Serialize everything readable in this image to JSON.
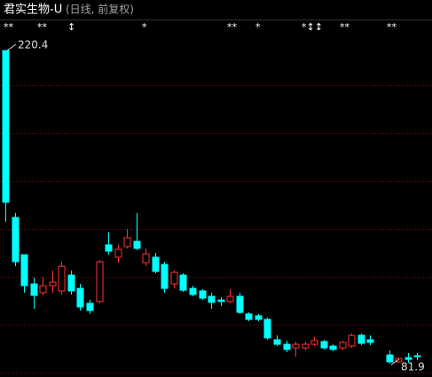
{
  "chart_data": {
    "type": "candlestick",
    "title": "君实生物-U",
    "subtitle": "(日线, 前复权)",
    "markers": [
      "**",
      "**",
      "↕",
      "*",
      "**",
      "*",
      "*↕↕",
      "**",
      "**"
    ],
    "up_color": "#ff3232",
    "down_color": "#00ffff",
    "open": [
      220.4,
      146.6,
      130.1,
      117.2,
      113.3,
      116.4,
      114.1,
      121.1,
      115.2,
      108.6,
      109.4,
      134.5,
      129.0,
      133.7,
      136.0,
      126.6,
      129.0,
      125.8,
      117.2,
      121.1,
      115.2,
      114.1,
      111.7,
      110.1,
      109.4,
      111.7,
      103.9,
      103.1,
      101.5,
      92.5,
      90.5,
      88.9,
      88.9,
      90.5,
      91.7,
      89.7,
      88.9,
      89.7,
      94.5,
      92.5,
      85.8,
      82.7,
      84.6,
      85.4
    ],
    "high": [
      220.4,
      148.6,
      130.1,
      120.0,
      120.3,
      123.1,
      127.0,
      123.1,
      117.2,
      110.1,
      127.8,
      140.0,
      134.5,
      141.5,
      148.6,
      132.9,
      130.9,
      127.0,
      123.1,
      121.9,
      116.4,
      114.8,
      113.3,
      111.3,
      114.8,
      113.3,
      104.6,
      103.9,
      102.3,
      94.4,
      92.1,
      91.7,
      91.7,
      93.7,
      92.5,
      90.5,
      92.1,
      95.2,
      95.2,
      94.4,
      87.8,
      84.6,
      86.6,
      86.6
    ],
    "low": [
      144.7,
      125.0,
      113.3,
      106.2,
      112.1,
      113.3,
      112.5,
      112.5,
      105.4,
      103.9,
      108.6,
      130.1,
      126.6,
      132.9,
      132.1,
      125.0,
      121.9,
      113.3,
      115.2,
      113.7,
      111.7,
      110.1,
      106.2,
      107.4,
      108.6,
      103.9,
      100.7,
      100.7,
      92.5,
      89.7,
      87.0,
      85.0,
      87.8,
      89.7,
      88.2,
      87.4,
      87.8,
      88.9,
      90.1,
      90.1,
      81.9,
      82.3,
      82.3,
      83.4
    ],
    "close": [
      153.3,
      127.0,
      116.4,
      112.1,
      116.4,
      118.0,
      125.0,
      114.1,
      107.0,
      105.4,
      127.0,
      131.7,
      132.5,
      137.6,
      132.9,
      130.5,
      122.7,
      115.2,
      122.3,
      114.4,
      112.5,
      110.9,
      109.0,
      109.4,
      111.7,
      104.6,
      101.5,
      101.5,
      93.3,
      90.5,
      88.2,
      90.5,
      90.5,
      92.1,
      88.9,
      88.2,
      91.3,
      94.4,
      90.9,
      91.3,
      82.7,
      84.2,
      83.8,
      85.0
    ]
  }
}
